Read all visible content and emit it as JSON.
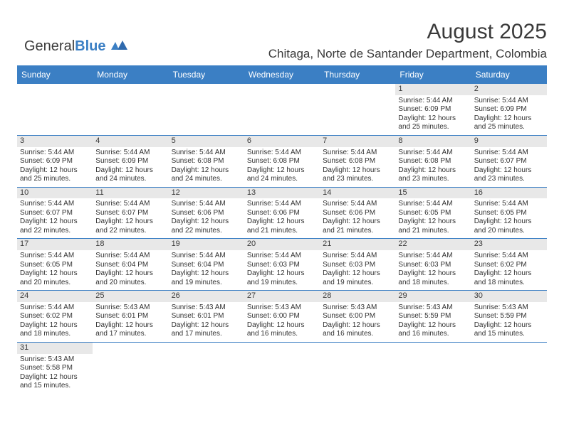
{
  "logo": {
    "text1": "General",
    "text2": "Blue"
  },
  "title": "August 2025",
  "subtitle": "Chitaga, Norte de Santander Department, Colombia",
  "weekdays": [
    "Sunday",
    "Monday",
    "Tuesday",
    "Wednesday",
    "Thursday",
    "Friday",
    "Saturday"
  ],
  "colors": {
    "accent": "#3b7fc4",
    "daybar": "#e8e8e8",
    "text": "#323232",
    "background": "#ffffff"
  },
  "calendar": {
    "first_weekday_index": 5,
    "days": [
      {
        "n": 1,
        "sunrise": "5:44 AM",
        "sunset": "6:09 PM",
        "daylight": "12 hours and 25 minutes."
      },
      {
        "n": 2,
        "sunrise": "5:44 AM",
        "sunset": "6:09 PM",
        "daylight": "12 hours and 25 minutes."
      },
      {
        "n": 3,
        "sunrise": "5:44 AM",
        "sunset": "6:09 PM",
        "daylight": "12 hours and 25 minutes."
      },
      {
        "n": 4,
        "sunrise": "5:44 AM",
        "sunset": "6:09 PM",
        "daylight": "12 hours and 24 minutes."
      },
      {
        "n": 5,
        "sunrise": "5:44 AM",
        "sunset": "6:08 PM",
        "daylight": "12 hours and 24 minutes."
      },
      {
        "n": 6,
        "sunrise": "5:44 AM",
        "sunset": "6:08 PM",
        "daylight": "12 hours and 24 minutes."
      },
      {
        "n": 7,
        "sunrise": "5:44 AM",
        "sunset": "6:08 PM",
        "daylight": "12 hours and 23 minutes."
      },
      {
        "n": 8,
        "sunrise": "5:44 AM",
        "sunset": "6:08 PM",
        "daylight": "12 hours and 23 minutes."
      },
      {
        "n": 9,
        "sunrise": "5:44 AM",
        "sunset": "6:07 PM",
        "daylight": "12 hours and 23 minutes."
      },
      {
        "n": 10,
        "sunrise": "5:44 AM",
        "sunset": "6:07 PM",
        "daylight": "12 hours and 22 minutes."
      },
      {
        "n": 11,
        "sunrise": "5:44 AM",
        "sunset": "6:07 PM",
        "daylight": "12 hours and 22 minutes."
      },
      {
        "n": 12,
        "sunrise": "5:44 AM",
        "sunset": "6:06 PM",
        "daylight": "12 hours and 22 minutes."
      },
      {
        "n": 13,
        "sunrise": "5:44 AM",
        "sunset": "6:06 PM",
        "daylight": "12 hours and 21 minutes."
      },
      {
        "n": 14,
        "sunrise": "5:44 AM",
        "sunset": "6:06 PM",
        "daylight": "12 hours and 21 minutes."
      },
      {
        "n": 15,
        "sunrise": "5:44 AM",
        "sunset": "6:05 PM",
        "daylight": "12 hours and 21 minutes."
      },
      {
        "n": 16,
        "sunrise": "5:44 AM",
        "sunset": "6:05 PM",
        "daylight": "12 hours and 20 minutes."
      },
      {
        "n": 17,
        "sunrise": "5:44 AM",
        "sunset": "6:05 PM",
        "daylight": "12 hours and 20 minutes."
      },
      {
        "n": 18,
        "sunrise": "5:44 AM",
        "sunset": "6:04 PM",
        "daylight": "12 hours and 20 minutes."
      },
      {
        "n": 19,
        "sunrise": "5:44 AM",
        "sunset": "6:04 PM",
        "daylight": "12 hours and 19 minutes."
      },
      {
        "n": 20,
        "sunrise": "5:44 AM",
        "sunset": "6:03 PM",
        "daylight": "12 hours and 19 minutes."
      },
      {
        "n": 21,
        "sunrise": "5:44 AM",
        "sunset": "6:03 PM",
        "daylight": "12 hours and 19 minutes."
      },
      {
        "n": 22,
        "sunrise": "5:44 AM",
        "sunset": "6:03 PM",
        "daylight": "12 hours and 18 minutes."
      },
      {
        "n": 23,
        "sunrise": "5:44 AM",
        "sunset": "6:02 PM",
        "daylight": "12 hours and 18 minutes."
      },
      {
        "n": 24,
        "sunrise": "5:44 AM",
        "sunset": "6:02 PM",
        "daylight": "12 hours and 18 minutes."
      },
      {
        "n": 25,
        "sunrise": "5:43 AM",
        "sunset": "6:01 PM",
        "daylight": "12 hours and 17 minutes."
      },
      {
        "n": 26,
        "sunrise": "5:43 AM",
        "sunset": "6:01 PM",
        "daylight": "12 hours and 17 minutes."
      },
      {
        "n": 27,
        "sunrise": "5:43 AM",
        "sunset": "6:00 PM",
        "daylight": "12 hours and 16 minutes."
      },
      {
        "n": 28,
        "sunrise": "5:43 AM",
        "sunset": "6:00 PM",
        "daylight": "12 hours and 16 minutes."
      },
      {
        "n": 29,
        "sunrise": "5:43 AM",
        "sunset": "5:59 PM",
        "daylight": "12 hours and 16 minutes."
      },
      {
        "n": 30,
        "sunrise": "5:43 AM",
        "sunset": "5:59 PM",
        "daylight": "12 hours and 15 minutes."
      },
      {
        "n": 31,
        "sunrise": "5:43 AM",
        "sunset": "5:58 PM",
        "daylight": "12 hours and 15 minutes."
      }
    ]
  },
  "labels": {
    "sunrise": "Sunrise: ",
    "sunset": "Sunset: ",
    "daylight": "Daylight: "
  }
}
